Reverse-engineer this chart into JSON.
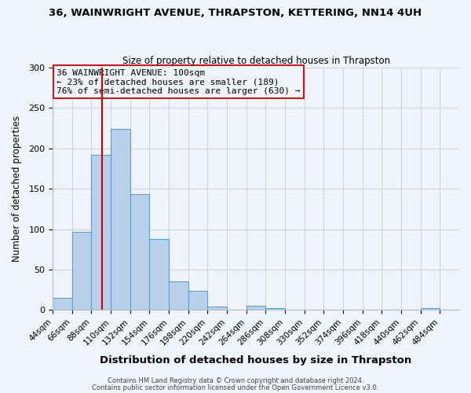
{
  "title": "36, WAINWRIGHT AVENUE, THRAPSTON, KETTERING, NN14 4UH",
  "subtitle": "Size of property relative to detached houses in Thrapston",
  "xlabel": "Distribution of detached houses by size in Thrapston",
  "ylabel": "Number of detached properties",
  "bin_edges": [
    44,
    66,
    88,
    110,
    132,
    154,
    176,
    198,
    220,
    242,
    264,
    286,
    308,
    330,
    352,
    374,
    396,
    418,
    440,
    462,
    484
  ],
  "bin_values": [
    15,
    97,
    192,
    224,
    143,
    88,
    35,
    24,
    4,
    0,
    5,
    2,
    0,
    0,
    0,
    0,
    0,
    0,
    0,
    2
  ],
  "bar_facecolor": "#b8d0ea",
  "bar_edgecolor": "#5a9fd4",
  "property_size": 100,
  "vline_color": "#cc0000",
  "annotation_line1": "36 WAINWRIGHT AVENUE: 100sqm",
  "annotation_line2": "← 23% of detached houses are smaller (189)",
  "annotation_line3": "76% of semi-detached houses are larger (630) →",
  "annotation_box_edgecolor": "#cc0000",
  "ylim": [
    0,
    300
  ],
  "yticks": [
    0,
    50,
    100,
    150,
    200,
    250,
    300
  ],
  "footer1": "Contains HM Land Registry data © Crown copyright and database right 2024.",
  "footer2": "Contains public sector information licensed under the Open Government Licence v3.0.",
  "bg_color": "#f0f4fa",
  "grid_color": "#c8d4e8",
  "title_fontsize": 9.5,
  "subtitle_fontsize": 8.5,
  "xlabel_fontsize": 9.5,
  "ylabel_fontsize": 8.5,
  "tick_fontsize": 8,
  "xtick_fontsize": 7.5,
  "annotation_fontsize": 8,
  "footer_fontsize": 6
}
